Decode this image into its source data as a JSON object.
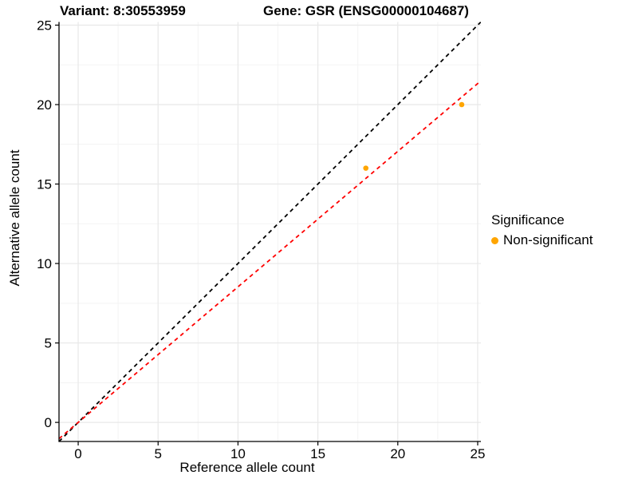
{
  "header": {
    "title_variant": "Variant: 8:30553959",
    "title_gene": "Gene: GSR (ENSG00000104687)"
  },
  "axes": {
    "x_label": "Reference allele count",
    "y_label": "Alternative allele count"
  },
  "legend": {
    "title": "Significance",
    "items": [
      {
        "label": "Non-significant",
        "color": "#FFA500"
      }
    ]
  },
  "chart_data": {
    "type": "scatter",
    "title_left": "Variant: 8:30553959",
    "title_right": "Gene: GSR (ENSG00000104687)",
    "xlabel": "Reference allele count",
    "ylabel": "Alternative allele count",
    "xlim": [
      -1.2,
      25.2
    ],
    "ylim": [
      -1.2,
      25.2
    ],
    "x_ticks": [
      0,
      5,
      10,
      15,
      20,
      25
    ],
    "y_ticks": [
      0,
      5,
      10,
      15,
      20,
      25
    ],
    "grid": "major+minor",
    "grid_major_color": "#e8e8e8",
    "grid_minor_color": "#f3f3f3",
    "axis_color": "#000000",
    "points": [
      {
        "x": 18,
        "y": 16,
        "significance": "Non-significant"
      },
      {
        "x": 24,
        "y": 20,
        "significance": "Non-significant"
      }
    ],
    "point_color": "#FFA500",
    "point_radius": 3.3,
    "lines": [
      {
        "name": "identity-line",
        "slope": 1,
        "intercept": 0,
        "color": "#000000",
        "style": "dashed"
      },
      {
        "name": "fit-line",
        "slope": 0.853,
        "intercept": 0,
        "color": "#FF0000",
        "style": "dashed"
      }
    ],
    "legend": {
      "title": "Significance",
      "position": "right",
      "items": [
        {
          "label": "Non-significant",
          "color": "#FFA500"
        }
      ]
    }
  }
}
